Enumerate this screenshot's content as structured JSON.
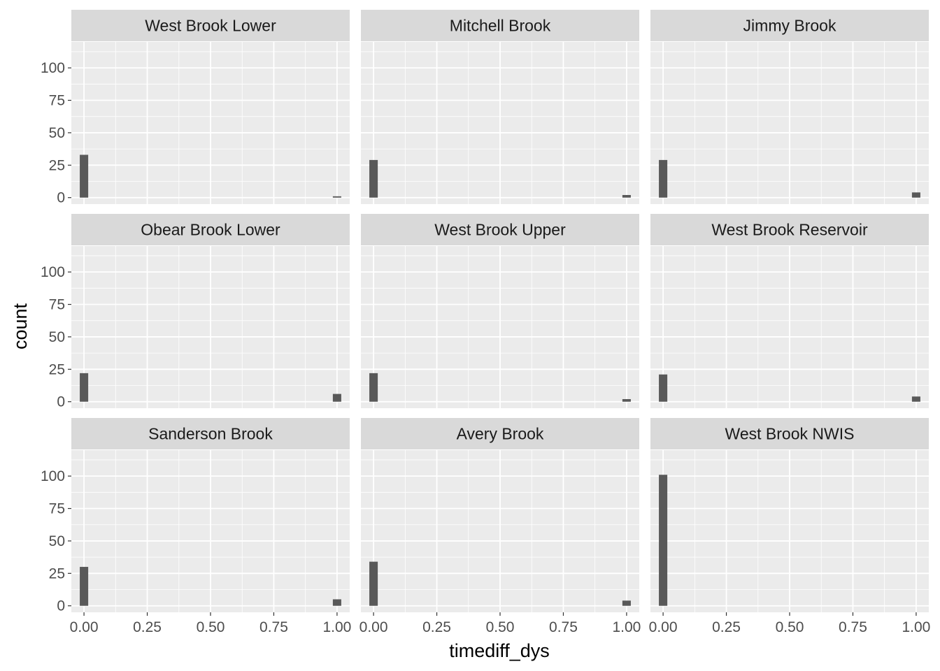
{
  "chart_data": {
    "type": "bar",
    "subtype": "faceted-histogram",
    "xlabel": "timediff_dys",
    "ylabel": "count",
    "xlim": [
      -0.05,
      1.05
    ],
    "ylim": [
      -5,
      120
    ],
    "x_ticks": [
      "0.00",
      "0.25",
      "0.50",
      "0.75",
      "1.00"
    ],
    "y_ticks": [
      "0",
      "25",
      "50",
      "75",
      "100"
    ],
    "bin_width": 0.0333,
    "bar_color": "#595959",
    "panel_bg": "#ebebeb",
    "strip_bg": "#d9d9d9",
    "grid": true,
    "facets": [
      {
        "name": "West Brook Lower",
        "bins": [
          {
            "x": 0.0,
            "count": 33
          },
          {
            "x": 1.0,
            "count": 1
          }
        ]
      },
      {
        "name": "Mitchell Brook",
        "bins": [
          {
            "x": 0.0,
            "count": 29
          },
          {
            "x": 1.0,
            "count": 2
          }
        ]
      },
      {
        "name": "Jimmy Brook",
        "bins": [
          {
            "x": 0.0,
            "count": 29
          },
          {
            "x": 1.0,
            "count": 4
          }
        ]
      },
      {
        "name": "Obear Brook Lower",
        "bins": [
          {
            "x": 0.0,
            "count": 22
          },
          {
            "x": 1.0,
            "count": 6
          }
        ]
      },
      {
        "name": "West Brook Upper",
        "bins": [
          {
            "x": 0.0,
            "count": 22
          },
          {
            "x": 1.0,
            "count": 2
          }
        ]
      },
      {
        "name": "West Brook Reservoir",
        "bins": [
          {
            "x": 0.0,
            "count": 21
          },
          {
            "x": 1.0,
            "count": 4
          }
        ]
      },
      {
        "name": "Sanderson Brook",
        "bins": [
          {
            "x": 0.0,
            "count": 30
          },
          {
            "x": 1.0,
            "count": 5
          }
        ]
      },
      {
        "name": "Avery Brook",
        "bins": [
          {
            "x": 0.0,
            "count": 34
          },
          {
            "x": 1.0,
            "count": 4
          }
        ]
      },
      {
        "name": "West Brook NWIS",
        "bins": [
          {
            "x": 0.0,
            "count": 101
          },
          {
            "x": 1.0,
            "count": 0
          }
        ]
      }
    ]
  }
}
